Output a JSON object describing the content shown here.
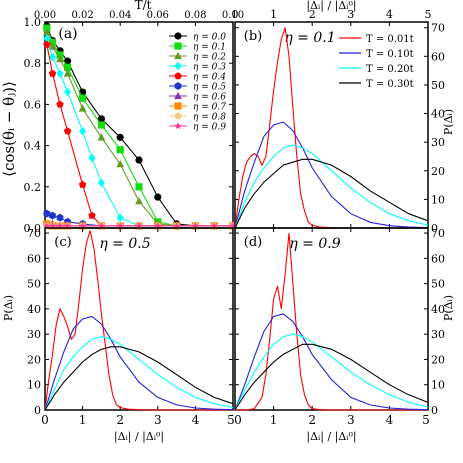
{
  "colors": {
    "eta": [
      "#000000",
      "#11dd11",
      "#669922",
      "#00ffff",
      "#ff0000",
      "#2233cc",
      "#8833aa",
      "#ff8800",
      "#eecc88",
      "#ff3399"
    ],
    "temps": [
      "#ff0000",
      "#2222dd",
      "#00ffff",
      "#000000"
    ]
  },
  "chart_data": [
    {
      "panel_label": "(a)",
      "type": "line",
      "x_top_label": "T/t",
      "ylabel": "⟨cos(θᵢ − θⱼ)⟩",
      "x_ticks": [
        "0.00",
        "0.02",
        "0.04",
        "0.06",
        "0.08",
        "0.10"
      ],
      "y_ticks": [
        "0.0",
        "0.2",
        "0.4",
        "0.6",
        "0.8",
        "1.0"
      ],
      "xlim": [
        0,
        0.1
      ],
      "ylim": [
        0,
        1.0
      ],
      "series": [
        {
          "name": "η = 0.0",
          "marker": "circle",
          "x": [
            0.001,
            0.004,
            0.008,
            0.012,
            0.02,
            0.03,
            0.04,
            0.05,
            0.06,
            0.07,
            0.08,
            0.09,
            0.1
          ],
          "y": [
            0.98,
            0.91,
            0.86,
            0.81,
            0.66,
            0.53,
            0.44,
            0.33,
            0.15,
            0.02,
            0.01,
            0.01,
            0.01
          ]
        },
        {
          "name": "η = 0.1",
          "marker": "square",
          "x": [
            0.001,
            0.004,
            0.008,
            0.012,
            0.02,
            0.03,
            0.04,
            0.05,
            0.06,
            0.07,
            0.08,
            0.09,
            0.1
          ],
          "y": [
            0.97,
            0.9,
            0.84,
            0.78,
            0.63,
            0.5,
            0.38,
            0.2,
            0.03,
            0.01,
            0.01,
            0.01,
            0.01
          ]
        },
        {
          "name": "η = 0.2",
          "marker": "triangle",
          "x": [
            0.001,
            0.004,
            0.008,
            0.012,
            0.02,
            0.03,
            0.04,
            0.05,
            0.06,
            0.07,
            0.08,
            0.09,
            0.1
          ],
          "y": [
            0.95,
            0.88,
            0.82,
            0.75,
            0.58,
            0.44,
            0.31,
            0.13,
            0.02,
            0.01,
            0.01,
            0.01,
            0.01
          ]
        },
        {
          "name": "η = 0.3",
          "marker": "diamond",
          "x": [
            0.001,
            0.004,
            0.008,
            0.012,
            0.02,
            0.025,
            0.03,
            0.04,
            0.05,
            0.06,
            0.07,
            0.08,
            0.09,
            0.1
          ],
          "y": [
            0.92,
            0.83,
            0.75,
            0.66,
            0.47,
            0.34,
            0.22,
            0.05,
            0.01,
            0.01,
            0.01,
            0.01,
            0.01,
            0.01
          ]
        },
        {
          "name": "η = 0.4",
          "marker": "pentagon",
          "x": [
            0.001,
            0.004,
            0.008,
            0.012,
            0.02,
            0.025,
            0.03,
            0.04,
            0.05,
            0.06,
            0.07,
            0.08,
            0.09,
            0.1
          ],
          "y": [
            0.89,
            0.75,
            0.6,
            0.47,
            0.21,
            0.06,
            0.01,
            0.01,
            0.01,
            0.01,
            0.01,
            0.01,
            0.01,
            0.01
          ]
        },
        {
          "name": "η = 0.5",
          "marker": "hexagon",
          "x": [
            0.001,
            0.004,
            0.008,
            0.012,
            0.02,
            0.03,
            0.04,
            0.05,
            0.06,
            0.07,
            0.08,
            0.09,
            0.1
          ],
          "y": [
            0.07,
            0.06,
            0.05,
            0.03,
            0.02,
            0.01,
            0.01,
            0.01,
            0.01,
            0.01,
            0.01,
            0.01,
            0.01
          ]
        },
        {
          "name": "η = 0.6",
          "marker": "triangle",
          "x": [
            0.001,
            0.004,
            0.008,
            0.012,
            0.02,
            0.03,
            0.04,
            0.05,
            0.06,
            0.07,
            0.08,
            0.09,
            0.1
          ],
          "y": [
            0.02,
            0.02,
            0.01,
            0.01,
            0.01,
            0.01,
            0.01,
            0.01,
            0.01,
            0.01,
            0.01,
            0.01,
            0.01
          ]
        },
        {
          "name": "η = 0.7",
          "marker": "square",
          "x": [
            0.001,
            0.004,
            0.008,
            0.012,
            0.02,
            0.03,
            0.04,
            0.05,
            0.06,
            0.07,
            0.08,
            0.09,
            0.1
          ],
          "y": [
            0.02,
            0.01,
            0.01,
            0.01,
            0.01,
            0.01,
            0.01,
            0.01,
            0.01,
            0.01,
            0.01,
            0.01,
            0.01
          ]
        },
        {
          "name": "η = 0.8",
          "marker": "pentagon",
          "x": [
            0.001,
            0.004,
            0.008,
            0.012,
            0.02,
            0.03,
            0.04,
            0.05,
            0.06,
            0.07,
            0.08,
            0.09,
            0.1
          ],
          "y": [
            0.01,
            0.01,
            0.01,
            0.01,
            0.01,
            0.01,
            0.01,
            0.01,
            0.01,
            0.01,
            0.01,
            0.01,
            0.01
          ]
        },
        {
          "name": "η = 0.9",
          "marker": "star",
          "x": [
            0.001,
            0.004,
            0.008,
            0.012,
            0.02,
            0.03,
            0.04,
            0.05,
            0.06,
            0.07,
            0.08,
            0.09,
            0.1
          ],
          "y": [
            0.01,
            0.01,
            0.01,
            0.01,
            0.01,
            0.01,
            0.01,
            0.01,
            0.01,
            0.01,
            0.01,
            0.01,
            0.01
          ]
        }
      ]
    },
    {
      "panel_label": "(b)",
      "type": "line",
      "annotation": "η = 0.1",
      "x_top_label": "|Δᵢ| / |Δᵢ⁰|",
      "y_right_label": "P(Δᵢ)",
      "x_ticks": [
        "0",
        "1",
        "2",
        "3",
        "4",
        "5"
      ],
      "y_ticks": [
        "0",
        "10",
        "20",
        "30",
        "40",
        "50",
        "60",
        "70"
      ],
      "xlim": [
        0,
        5
      ],
      "ylim": [
        0,
        72
      ],
      "series": [
        {
          "name": "T = 0.01t",
          "x": [
            0,
            0.1,
            0.2,
            0.3,
            0.4,
            0.5,
            0.6,
            0.7,
            0.8,
            0.9,
            1.0,
            1.1,
            1.2,
            1.3,
            1.4,
            1.5,
            1.6,
            1.7,
            1.8,
            1.9,
            2.0,
            2.2,
            2.5,
            3,
            4,
            5
          ],
          "y": [
            0,
            10,
            18,
            23,
            25,
            26,
            25,
            22,
            25,
            36,
            48,
            58,
            66,
            70,
            60,
            42,
            25,
            12,
            6,
            2,
            1,
            0.3,
            0.1,
            0,
            0,
            0
          ]
        },
        {
          "name": "T = 0.10t",
          "x": [
            0,
            0.25,
            0.5,
            0.75,
            1.0,
            1.25,
            1.5,
            1.75,
            2.0,
            2.5,
            3.0,
            3.5,
            4.0,
            4.5,
            5.0
          ],
          "y": [
            0,
            13,
            23,
            32,
            36,
            37,
            34,
            28,
            21,
            11,
            5,
            2,
            0.8,
            0.3,
            0.1
          ]
        },
        {
          "name": "T = 0.20t",
          "x": [
            0,
            0.25,
            0.5,
            0.75,
            1.0,
            1.25,
            1.5,
            1.75,
            2.0,
            2.5,
            3.0,
            3.5,
            4.0,
            4.5,
            5.0
          ],
          "y": [
            0,
            9,
            16,
            21,
            25,
            28,
            29,
            28,
            26,
            20,
            14,
            9,
            5,
            2.5,
            1
          ]
        },
        {
          "name": "T = 0.30t",
          "x": [
            0,
            0.25,
            0.5,
            0.75,
            1.0,
            1.25,
            1.5,
            1.75,
            2.0,
            2.5,
            3.0,
            3.5,
            4.0,
            4.5,
            5.0
          ],
          "y": [
            0,
            7,
            12,
            16,
            19,
            22,
            23,
            24,
            24,
            22,
            18,
            13,
            9,
            5,
            2.5
          ]
        }
      ]
    },
    {
      "panel_label": "(c)",
      "type": "line",
      "annotation": "η = 0.5",
      "xlabel": "|Δᵢ| / |Δᵢ⁰|",
      "ylabel": "P(Δᵢ)",
      "x_ticks": [
        "0",
        "1",
        "2",
        "3",
        "4",
        "5"
      ],
      "y_ticks": [
        "0",
        "10",
        "20",
        "30",
        "40",
        "50",
        "60",
        "70"
      ],
      "xlim": [
        0,
        5
      ],
      "ylim": [
        0,
        72
      ],
      "series": [
        {
          "name": "T = 0.01t",
          "x": [
            0,
            0.1,
            0.2,
            0.3,
            0.4,
            0.5,
            0.6,
            0.7,
            0.8,
            0.9,
            1.0,
            1.1,
            1.2,
            1.3,
            1.4,
            1.5,
            1.6,
            1.7,
            1.8,
            1.9,
            2.0,
            2.2,
            2.5,
            3,
            4,
            5
          ],
          "y": [
            0,
            12,
            22,
            34,
            40,
            37,
            33,
            28,
            30,
            42,
            56,
            66,
            71,
            64,
            52,
            38,
            26,
            14,
            6,
            2,
            1,
            0.3,
            0.1,
            0,
            0,
            0
          ]
        },
        {
          "name": "T = 0.10t",
          "x": [
            0,
            0.25,
            0.5,
            0.75,
            1.0,
            1.25,
            1.5,
            1.75,
            2.0,
            2.5,
            3.0,
            3.5,
            4.0,
            4.5,
            5.0
          ],
          "y": [
            0,
            12,
            23,
            32,
            36,
            37,
            34,
            28,
            21,
            11,
            5,
            2,
            0.8,
            0.3,
            0.1
          ]
        },
        {
          "name": "T = 0.20t",
          "x": [
            0,
            0.25,
            0.5,
            0.75,
            1.0,
            1.25,
            1.5,
            1.75,
            2.0,
            2.5,
            3.0,
            3.5,
            4.0,
            4.5,
            5.0
          ],
          "y": [
            0,
            8,
            16,
            21,
            25,
            28,
            29,
            28,
            26,
            20,
            14,
            9,
            5,
            2.5,
            1
          ]
        },
        {
          "name": "T = 0.30t",
          "x": [
            0,
            0.25,
            0.5,
            0.75,
            1.0,
            1.25,
            1.5,
            1.75,
            2.0,
            2.5,
            3.0,
            3.5,
            4.0,
            4.5,
            5.0
          ],
          "y": [
            0,
            6,
            11,
            15,
            19,
            22,
            24,
            25,
            25,
            23,
            19,
            14,
            9,
            5,
            2.5
          ]
        }
      ]
    },
    {
      "panel_label": "(d)",
      "type": "line",
      "annotation": "η = 0.9",
      "xlabel": "|Δᵢ| / |Δᵢ⁰|",
      "y_right_label": "P(Δᵢ)",
      "x_ticks": [
        "0",
        "1",
        "2",
        "3",
        "4",
        "5"
      ],
      "y_ticks": [
        "0",
        "10",
        "20",
        "30",
        "40",
        "50",
        "60",
        "70"
      ],
      "xlim": [
        0,
        5
      ],
      "ylim": [
        0,
        72
      ],
      "series": [
        {
          "name": "T = 0.01t",
          "x": [
            0,
            0.3,
            0.5,
            0.7,
            0.8,
            0.9,
            1.0,
            1.1,
            1.2,
            1.3,
            1.4,
            1.5,
            1.6,
            1.7,
            1.8,
            1.9,
            2.0,
            2.2,
            2.5,
            3,
            4,
            5
          ],
          "y": [
            0,
            0,
            0.5,
            5,
            14,
            28,
            44,
            49,
            40,
            54,
            70,
            50,
            30,
            14,
            6,
            2,
            0.5,
            0.1,
            0,
            0,
            0,
            0
          ]
        },
        {
          "name": "T = 0.10t",
          "x": [
            0,
            0.25,
            0.5,
            0.75,
            1.0,
            1.25,
            1.5,
            1.75,
            2.0,
            2.5,
            3.0,
            3.5,
            4.0,
            4.5,
            5.0
          ],
          "y": [
            0,
            10,
            21,
            31,
            37,
            38,
            35,
            29,
            22,
            12,
            5,
            2,
            0.8,
            0.3,
            0.1
          ]
        },
        {
          "name": "T = 0.20t",
          "x": [
            0,
            0.25,
            0.5,
            0.75,
            1.0,
            1.25,
            1.5,
            1.75,
            2.0,
            2.5,
            3.0,
            3.5,
            4.0,
            4.5,
            5.0
          ],
          "y": [
            0,
            8,
            15,
            21,
            26,
            29,
            30,
            29,
            27,
            21,
            15,
            10,
            6,
            3,
            1.2
          ]
        },
        {
          "name": "T = 0.30t",
          "x": [
            0,
            0.25,
            0.5,
            0.75,
            1.0,
            1.25,
            1.5,
            1.75,
            2.0,
            2.5,
            3.0,
            3.5,
            4.0,
            4.5,
            5.0
          ],
          "y": [
            0,
            6,
            11,
            15,
            19,
            22,
            24,
            26,
            26,
            24,
            20,
            15,
            10,
            6,
            3
          ]
        }
      ]
    }
  ]
}
